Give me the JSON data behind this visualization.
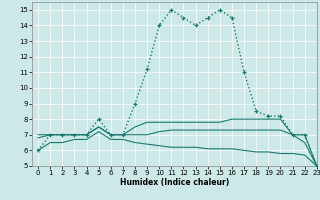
{
  "xlabel": "Humidex (Indice chaleur)",
  "xlim": [
    -0.5,
    23
  ],
  "ylim": [
    5,
    15.5
  ],
  "yticks": [
    5,
    6,
    7,
    8,
    9,
    10,
    11,
    12,
    13,
    14,
    15
  ],
  "xticks": [
    0,
    1,
    2,
    3,
    4,
    5,
    6,
    7,
    8,
    9,
    10,
    11,
    12,
    13,
    14,
    15,
    16,
    17,
    18,
    19,
    20,
    21,
    22,
    23
  ],
  "bg_color": "#cce9e8",
  "line_color": "#1a7a6e",
  "curve1_x": [
    0,
    1,
    2,
    3,
    4,
    5,
    6,
    7,
    8,
    9,
    10,
    11,
    12,
    13,
    14,
    15,
    16,
    17,
    18,
    19,
    20,
    21,
    22,
    23
  ],
  "curve1_y": [
    6,
    7,
    7,
    7,
    7,
    8,
    7,
    7,
    9,
    11.2,
    14,
    15,
    14.5,
    14,
    14.5,
    15,
    14.5,
    11,
    8.5,
    8.2,
    8.2,
    7,
    7,
    5
  ],
  "curve2_x": [
    0,
    3,
    4,
    5,
    6,
    7,
    8,
    9,
    10,
    11,
    12,
    13,
    14,
    15,
    16,
    17,
    18,
    19,
    20,
    21,
    22,
    23
  ],
  "curve2_y": [
    7,
    7,
    7,
    7.5,
    7,
    7,
    7.5,
    7.8,
    7.8,
    7.8,
    7.8,
    7.8,
    7.8,
    7.8,
    8,
    8,
    8,
    8,
    8,
    7,
    7,
    5
  ],
  "curve3_x": [
    0,
    1,
    2,
    3,
    4,
    5,
    6,
    7,
    8,
    9,
    10,
    11,
    12,
    13,
    14,
    15,
    16,
    17,
    18,
    19,
    20,
    21,
    22,
    23
  ],
  "curve3_y": [
    6.8,
    7,
    7,
    7,
    7,
    7.5,
    7,
    7,
    7,
    7,
    7.2,
    7.3,
    7.3,
    7.3,
    7.3,
    7.3,
    7.3,
    7.3,
    7.3,
    7.3,
    7.3,
    7,
    6.5,
    5
  ],
  "curve4_x": [
    0,
    1,
    2,
    3,
    4,
    5,
    6,
    7,
    8,
    9,
    10,
    11,
    12,
    13,
    14,
    15,
    16,
    17,
    18,
    19,
    20,
    21,
    22,
    23
  ],
  "curve4_y": [
    6,
    6.5,
    6.5,
    6.7,
    6.7,
    7.2,
    6.7,
    6.7,
    6.5,
    6.4,
    6.3,
    6.2,
    6.2,
    6.2,
    6.1,
    6.1,
    6.1,
    6.0,
    5.9,
    5.9,
    5.8,
    5.8,
    5.7,
    5.0
  ]
}
